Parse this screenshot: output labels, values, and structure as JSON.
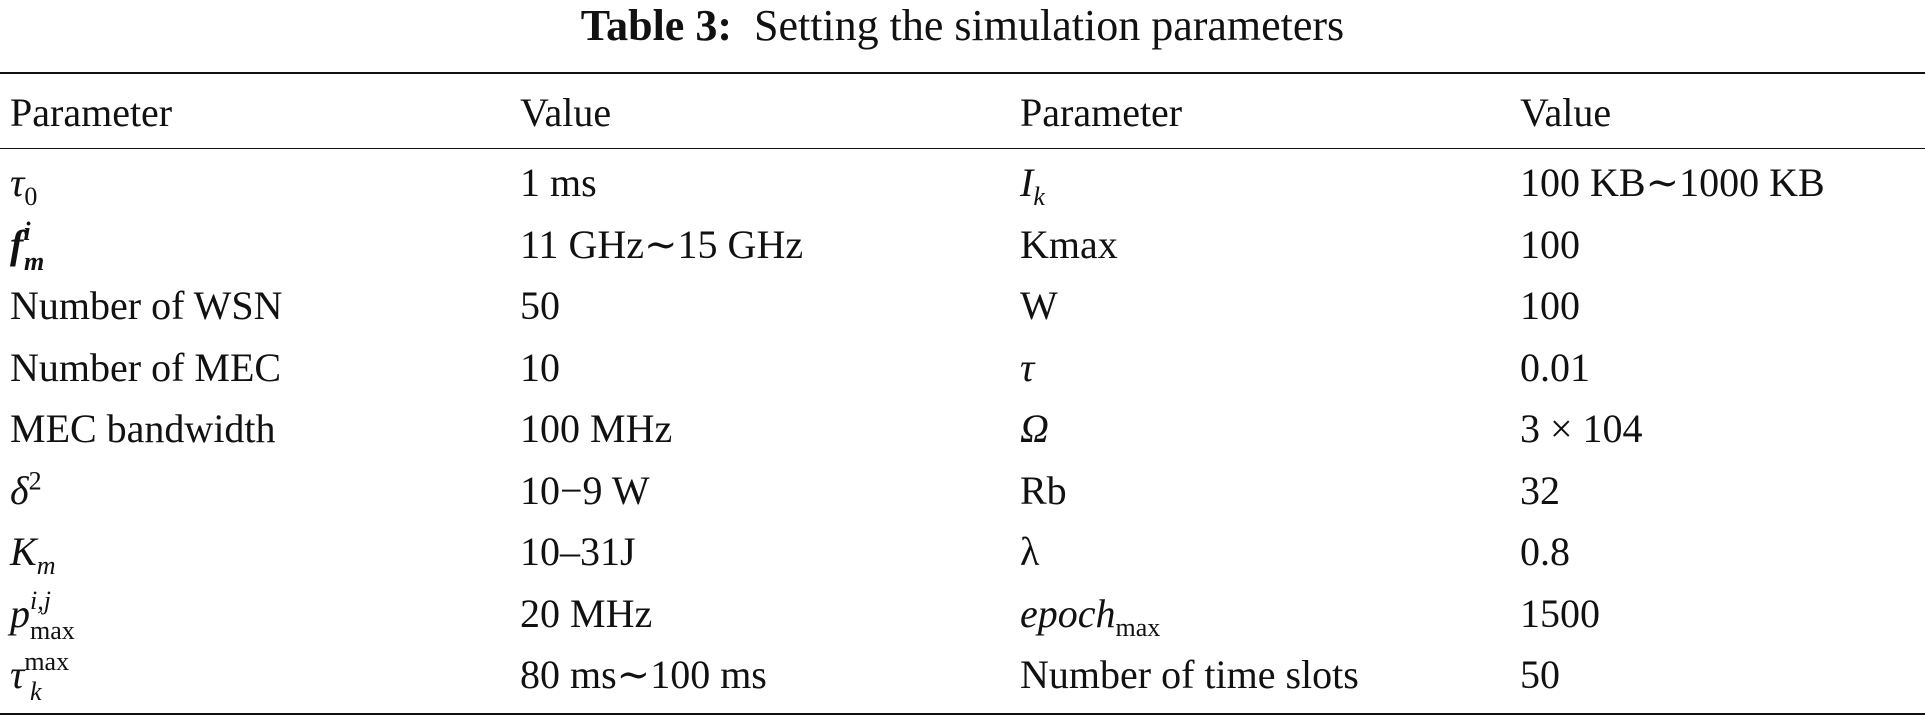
{
  "caption": {
    "label": "Table 3:",
    "text": "Setting the simulation parameters"
  },
  "headers": [
    "Parameter",
    "Value",
    "Parameter",
    "Value"
  ],
  "rows": [
    {
      "param_left": {
        "base": "τ",
        "sub": "0"
      },
      "value_left": "1 ms",
      "param_right": {
        "base": "I",
        "sub": "k"
      },
      "value_right": "100 KB∼1000 KB"
    },
    {
      "param_left": {
        "base": "f",
        "sup": "i",
        "sub": "m"
      },
      "value_left": "11 GHz∼15 GHz",
      "param_right": {
        "text": "Kmax"
      },
      "value_right": "100"
    },
    {
      "param_left": {
        "text": "Number of WSN"
      },
      "value_left": "50",
      "param_right": {
        "text": "W"
      },
      "value_right": "100"
    },
    {
      "param_left": {
        "text": "Number of MEC"
      },
      "value_left": "10",
      "param_right": {
        "base": "τ"
      },
      "value_right": "0.01"
    },
    {
      "param_left": {
        "text": "MEC bandwidth"
      },
      "value_left": "100 MHz",
      "param_right": {
        "base": "Ω"
      },
      "value_right": "3 × 104"
    },
    {
      "param_left": {
        "base": "δ",
        "sup": "2"
      },
      "value_left": "10−9 W",
      "param_right": {
        "text": "Rb"
      },
      "value_right": "32"
    },
    {
      "param_left": {
        "base": "K",
        "sub": "m"
      },
      "value_left": "10–31J",
      "param_right": {
        "text": "λ"
      },
      "value_right": "0.8"
    },
    {
      "param_left": {
        "base": "p",
        "sup": "i,j",
        "sub": "max"
      },
      "value_left": "20 MHz",
      "param_right": {
        "base": "epoch",
        "sub": "max"
      },
      "value_right": "1500"
    },
    {
      "param_left": {
        "base": "τ",
        "sup": "max",
        "sub": "k"
      },
      "value_left": "80 ms∼100 ms",
      "param_right": {
        "text": "Number of time slots"
      },
      "value_right": "50"
    }
  ]
}
